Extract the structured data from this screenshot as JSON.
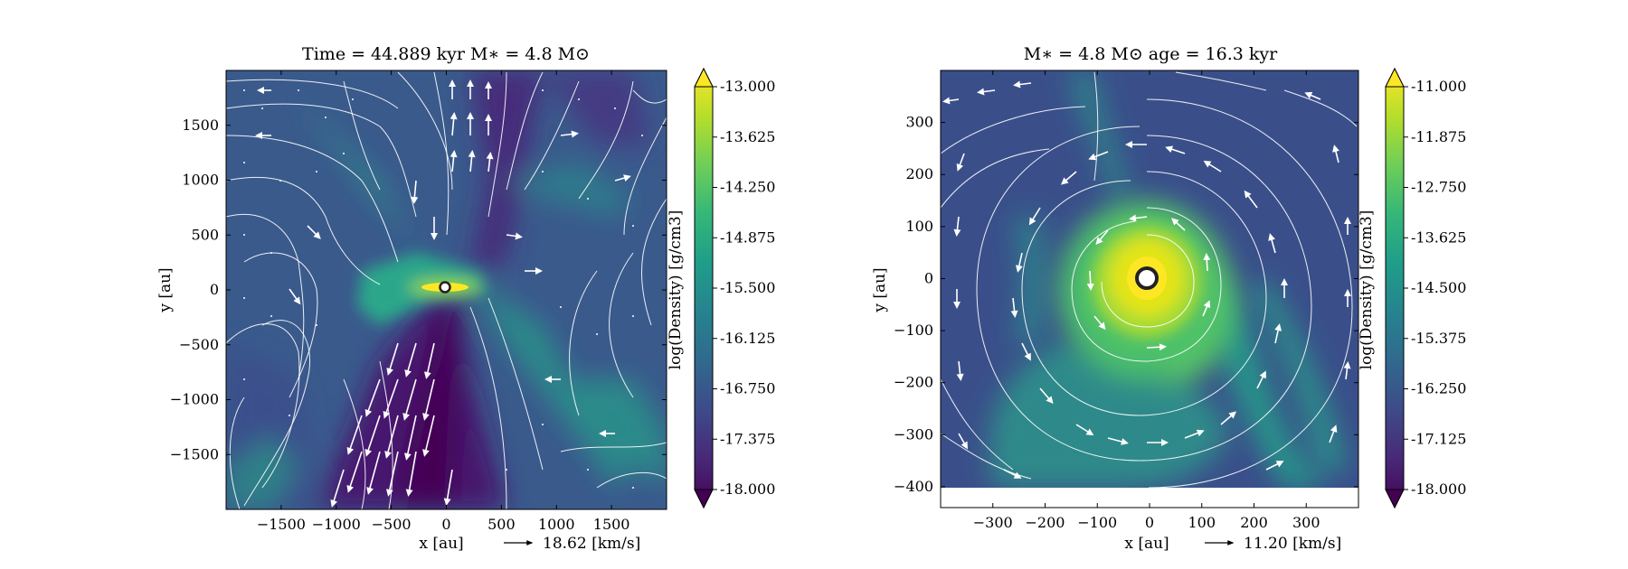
{
  "chart_data": [
    {
      "type": "heatmap",
      "title": "Time = 44.889 kyr    M$_*$ = 4.8 M$_\\odot$",
      "title_text": "Time = 44.889 kyr    M∗ = 4.8 M⊙",
      "xlabel": "x [au]",
      "ylabel": "y [au]",
      "xlim": [
        -2000,
        2000
      ],
      "ylim": [
        -2000,
        2000
      ],
      "xticks": [
        -1500,
        -1000,
        -500,
        0,
        500,
        1000,
        1500
      ],
      "yticks": [
        -1500,
        -1000,
        -500,
        0,
        500,
        1000,
        1500
      ],
      "vector_key": "18.62 [km/s]",
      "colorbar": {
        "label": "log(Density) [g/cm3]",
        "range": [
          -18.0,
          -13.0
        ],
        "ticks": [
          "-13.000",
          "-13.625",
          "-14.250",
          "-14.875",
          "-15.500",
          "-16.125",
          "-16.750",
          "-17.375",
          "-18.000"
        ],
        "extend": "both"
      },
      "features": {
        "star_position": [
          0,
          0
        ],
        "outflow_cavity_angle_deg": 10,
        "disk": "edge-on, high density along y = 0"
      }
    },
    {
      "type": "heatmap",
      "title": "M$_*$ = 4.8 M$_\\odot$          age = 16.3 kyr",
      "title_text": "M∗ = 4.8 M⊙          age = 16.3 kyr",
      "xlabel": "x [au]",
      "ylabel": "y [au]",
      "xlim": [
        -400,
        400
      ],
      "ylim": [
        -440,
        400
      ],
      "data_ylim": [
        -400,
        400
      ],
      "xticks": [
        -300,
        -200,
        -100,
        0,
        100,
        200,
        300
      ],
      "yticks": [
        -400,
        -300,
        -200,
        -100,
        0,
        100,
        200,
        300
      ],
      "vector_key": "11.20 [km/s]",
      "colorbar": {
        "label": "log(Density) [g/cm3]",
        "range": [
          -18.0,
          -11.0
        ],
        "ticks": [
          "-11.000",
          "-11.875",
          "-12.750",
          "-13.625",
          "-14.500",
          "-15.375",
          "-16.250",
          "-17.125",
          "-18.000"
        ],
        "extend": "both"
      },
      "features": {
        "star_position": [
          0,
          0
        ],
        "rotation": "counter-clockwise spiral flow",
        "disk": "face-on, dense core radius ~ 80 au with spiral arm"
      }
    }
  ],
  "colors": {
    "viridis": [
      "#440154",
      "#482878",
      "#3e4a89",
      "#31688e",
      "#26828e",
      "#1f9e89",
      "#35b779",
      "#6ece58",
      "#b5de2b",
      "#fde725"
    ],
    "streamline": "#ffffff",
    "star_ring": "#222222"
  }
}
